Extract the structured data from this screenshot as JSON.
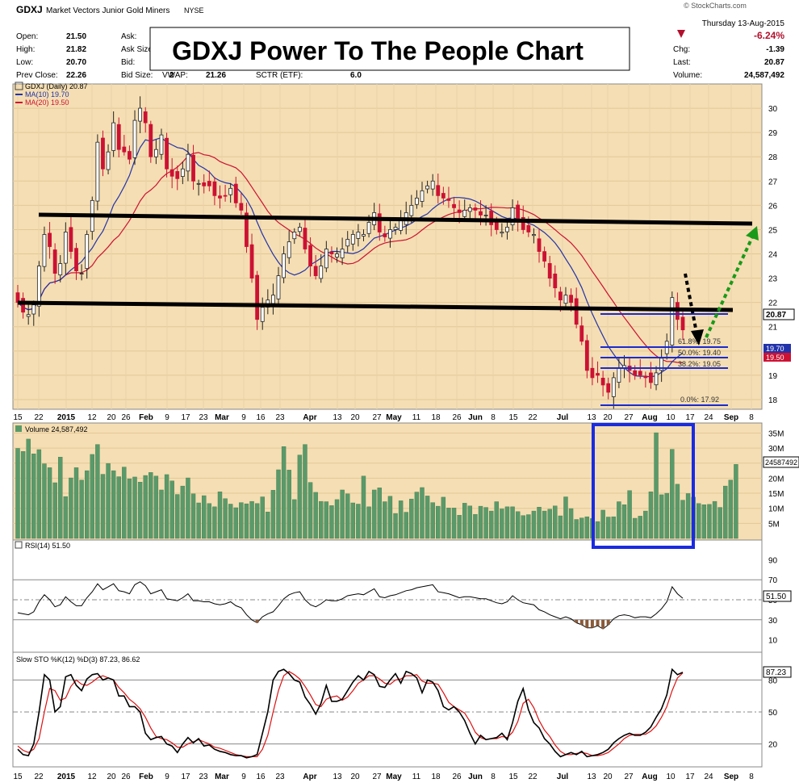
{
  "header": {
    "symbol": "GDXJ",
    "name": "Market Vectors Junior Gold Miners",
    "exchange": "NYSE",
    "copyright": "© StockCharts.com",
    "date": "Thursday 13-Aug-2015",
    "change_pct": "-6.24%",
    "fields": [
      {
        "label": "Open:",
        "value": "21.50"
      },
      {
        "label": "High:",
        "value": "21.82"
      },
      {
        "label": "Low:",
        "value": "20.70"
      },
      {
        "label": "Prev Close:",
        "value": "22.26"
      }
    ],
    "mid_fields": [
      {
        "label": "Ask:",
        "value": ""
      },
      {
        "label": "Ask Size:",
        "value": ""
      },
      {
        "label": "Bid:",
        "value": ""
      },
      {
        "label": "Bid Size:",
        "value": "2"
      }
    ],
    "vwap_label": "VWAP:",
    "vwap": "21.26",
    "sctr_label": "SCTR (ETF):",
    "sctr": "6.0",
    "right_fields": [
      {
        "label": "Chg:",
        "value": "-1.39"
      },
      {
        "label": "Last:",
        "value": "20.87"
      },
      {
        "label": "Volume:",
        "value": "24,587,492"
      }
    ],
    "banner": "GDXJ Power To The People Chart"
  },
  "colors": {
    "panel_bg": "#f5deb3",
    "up": "#ffffff",
    "down": "#cc1133",
    "ma10": "#2233aa",
    "ma20": "#cc1133",
    "volume": "#5a9a6a",
    "highlight_box": "#1a2be0",
    "arrow_down": "#000000",
    "arrow_up": "#1a9a1a"
  },
  "chart_data": [
    {
      "type": "candlestick",
      "title": "GDXJ (Daily) 20.87",
      "legend": [
        "MA(10) 19.70",
        "MA(20) 19.50"
      ],
      "ylim": [
        17.6,
        31.0
      ],
      "yticks": [
        18,
        19,
        20,
        21,
        22,
        23,
        24,
        25,
        26,
        27,
        28,
        29,
        30
      ],
      "xticks": [
        "15",
        "22",
        "2015",
        "12",
        "20",
        "26",
        "Feb",
        "9",
        "17",
        "23",
        "Mar",
        "9",
        "16",
        "23",
        "Apr",
        "13",
        "20",
        "27",
        "May",
        "11",
        "18",
        "26",
        "Jun",
        "8",
        "15",
        "22",
        "Jul",
        "13",
        "20",
        "27",
        "Aug",
        "10",
        "17",
        "24",
        "Sep",
        "8"
      ],
      "close_path": [
        22.0,
        21.6,
        21.5,
        21.9,
        23.5,
        24.8,
        24.3,
        23.2,
        23.6,
        24.9,
        24.1,
        23.3,
        23.2,
        24.8,
        26.2,
        28.6,
        27.5,
        28.2,
        29.4,
        28.3,
        28.2,
        27.9,
        29.5,
        30.0,
        29.4,
        28.0,
        28.3,
        28.9,
        27.5,
        27.2,
        27.1,
        27.5,
        28.1,
        27.0,
        26.9,
        26.8,
        26.8,
        26.4,
        26.3,
        26.4,
        26.7,
        26.1,
        25.8,
        24.3,
        23.0,
        21.3,
        21.8,
        22.1,
        22.3,
        23.1,
        24.0,
        24.5,
        24.9,
        25.1,
        24.2,
        23.5,
        23.1,
        23.5,
        24.2,
        24.0,
        24.0,
        24.2,
        24.6,
        24.8,
        24.9,
        24.8,
        25.3,
        25.7,
        24.9,
        24.7,
        25.0,
        25.1,
        25.4,
        25.7,
        26.0,
        26.3,
        26.6,
        26.8,
        27.0,
        26.4,
        26.3,
        26.2,
        25.9,
        25.7,
        25.8,
        25.9,
        25.8,
        25.6,
        25.6,
        25.2,
        25.0,
        24.9,
        25.1,
        25.9,
        25.4,
        25.0,
        24.9,
        24.8,
        24.1,
        23.7,
        23.0,
        22.6,
        22.1,
        22.3,
        22.0,
        21.1,
        20.4,
        19.2,
        18.9,
        19.0,
        18.6,
        18.3,
        18.9,
        19.3,
        19.4,
        19.2,
        19.0,
        19.0,
        18.9,
        18.7,
        19.1,
        19.7,
        20.4,
        22.2,
        21.3,
        20.87
      ],
      "annotations": [
        "61.8%: 19.75",
        "50.0%: 19.40",
        "38.2%: 19.05",
        "0.0%: 17.92"
      ],
      "last_value_labels": [
        "20.87",
        "19.70",
        "19.50"
      ],
      "series": [
        {
          "name": "MA(10)"
        },
        {
          "name": "MA(20)"
        }
      ]
    },
    {
      "type": "bar",
      "title": "Volume 24,587,492",
      "yticks": [
        "5M",
        "10M",
        "15M",
        "20M",
        "25M",
        "30M",
        "35M"
      ],
      "ylim": [
        0,
        37
      ],
      "last_value_label": "24587492",
      "values_m": [
        29.9,
        28.9,
        33,
        28.1,
        29.5,
        24.8,
        23.5,
        18.5,
        27,
        13.9,
        20.1,
        23.5,
        19.4,
        22.5,
        27.9,
        31.2,
        21.3,
        24.9,
        22.5,
        20.5,
        23.7,
        19.8,
        20.4,
        18.7,
        20.9,
        21.9,
        20.7,
        16.1,
        21.2,
        19.1,
        14.6,
        17.4,
        20.1,
        14.8,
        11.8,
        14.2,
        11.6,
        10.5,
        15.5,
        13.2,
        11.4,
        10.2,
        11.9,
        11.5,
        12.3,
        11.6,
        13.8,
        8.8,
        16,
        22.8,
        30.5,
        22.7,
        12.9,
        27.7,
        31.2,
        18.6,
        15.3,
        12.3,
        12.2,
        10.9,
        12.9,
        16.1,
        14.8,
        11.8,
        11.4,
        20.7,
        10.5,
        16.1,
        16.8,
        12.2,
        14,
        8.3,
        12.5,
        8.7,
        13.1,
        15.4,
        16.9,
        14.1,
        11.9,
        10.7,
        13.7,
        10.1,
        10.1,
        7.7,
        11.7,
        10.8,
        8,
        10.7,
        10.3,
        9.1,
        12.2,
        9.8,
        10.5,
        10.5,
        8.9,
        7.6,
        7.9,
        9.1,
        10.4,
        9.1,
        9.7,
        10.8,
        7.5,
        13.8,
        9.9,
        6.3,
        6.8,
        7.2,
        6.6,
        5.6,
        9.4,
        7.1,
        7.2,
        12.2,
        11.2,
        15.9,
        6.7,
        7.4,
        9.1,
        15.5,
        35.1,
        14.5,
        15,
        29.6,
        18,
        12.7,
        14.9,
        13.7,
        11.6,
        11.2,
        11.3,
        12.3,
        10.3,
        17.4,
        19.4,
        24.58
      ]
    },
    {
      "type": "line",
      "title": "RSI(14) 51.50",
      "ylim": [
        0,
        100
      ],
      "yticks": [
        10,
        30,
        50,
        70,
        90
      ],
      "last_value_label": "51.50",
      "values": [
        37,
        36,
        35,
        38,
        48,
        55,
        50,
        43,
        45,
        53,
        48,
        44,
        44,
        52,
        58,
        66,
        60,
        63,
        66,
        59,
        58,
        56,
        65,
        68,
        64,
        56,
        58,
        60,
        51,
        50,
        49,
        52,
        56,
        49,
        49,
        48,
        48,
        46,
        45,
        46,
        48,
        44,
        42,
        35,
        30,
        27,
        33,
        36,
        38,
        44,
        51,
        55,
        57,
        58,
        50,
        45,
        43,
        46,
        50,
        49,
        49,
        51,
        54,
        55,
        56,
        55,
        58,
        61,
        53,
        52,
        54,
        55,
        57,
        59,
        60,
        62,
        63,
        64,
        65,
        58,
        57,
        56,
        54,
        52,
        53,
        53,
        52,
        51,
        51,
        49,
        47,
        46,
        48,
        54,
        50,
        47,
        46,
        45,
        40,
        38,
        35,
        33,
        31,
        33,
        31,
        27,
        25,
        22,
        22,
        24,
        21,
        25,
        31,
        34,
        35,
        34,
        32,
        33,
        33,
        32,
        36,
        41,
        48,
        63,
        56,
        51.5
      ]
    },
    {
      "type": "line",
      "title": "Slow STO %K(12) %D(3) 87.23, 86.62",
      "ylim": [
        0,
        100
      ],
      "yticks": [
        20,
        50,
        80
      ],
      "last_value_labels": [
        "87.23"
      ],
      "series": [
        {
          "name": "%K(12)",
          "values": [
            15,
            10,
            9,
            20,
            50,
            85,
            80,
            50,
            55,
            83,
            85,
            75,
            70,
            81,
            85,
            86,
            80,
            82,
            80,
            65,
            65,
            55,
            55,
            50,
            30,
            24,
            26,
            27,
            20,
            18,
            12,
            20,
            26,
            21,
            25,
            18,
            19,
            15,
            13,
            12,
            10,
            9,
            9,
            7,
            8,
            10,
            30,
            50,
            80,
            88,
            90,
            86,
            80,
            78,
            64,
            57,
            48,
            58,
            75,
            60,
            60,
            62,
            70,
            78,
            84,
            80,
            88,
            85,
            74,
            73,
            80,
            86,
            77,
            88,
            86,
            82,
            68,
            80,
            78,
            70,
            55,
            52,
            55,
            50,
            42,
            30,
            20,
            28,
            24,
            25,
            26,
            30,
            24,
            40,
            60,
            72,
            52,
            40,
            35,
            25,
            20,
            13,
            8,
            10,
            12,
            10,
            13,
            8,
            9,
            10,
            12,
            15,
            21,
            25,
            28,
            30,
            28,
            28,
            31,
            36,
            45,
            53,
            66,
            90,
            85,
            87.23
          ]
        },
        {
          "name": "%D(3)",
          "values": [
            18,
            14,
            12,
            15,
            25,
            50,
            72,
            70,
            61,
            63,
            74,
            80,
            76,
            75,
            78,
            82,
            84,
            82,
            80,
            73,
            68,
            62,
            58,
            53,
            45,
            35,
            27,
            25,
            24,
            21,
            17,
            17,
            20,
            22,
            24,
            22,
            20,
            17,
            16,
            14,
            12,
            10,
            9,
            8,
            8,
            8,
            15,
            28,
            50,
            70,
            84,
            88,
            85,
            81,
            74,
            66,
            57,
            55,
            62,
            64,
            65,
            61,
            64,
            70,
            77,
            80,
            84,
            84,
            81,
            77,
            76,
            80,
            81,
            84,
            84,
            85,
            79,
            77,
            77,
            76,
            68,
            59,
            55,
            52,
            49,
            41,
            31,
            26,
            24,
            25,
            25,
            27,
            26,
            31,
            41,
            58,
            62,
            54,
            42,
            33,
            27,
            19,
            13,
            10,
            10,
            11,
            12,
            11,
            9,
            9,
            10,
            12,
            16,
            20,
            25,
            28,
            29,
            29,
            29,
            32,
            37,
            45,
            55,
            70,
            82,
            86.62
          ]
        }
      ]
    }
  ]
}
